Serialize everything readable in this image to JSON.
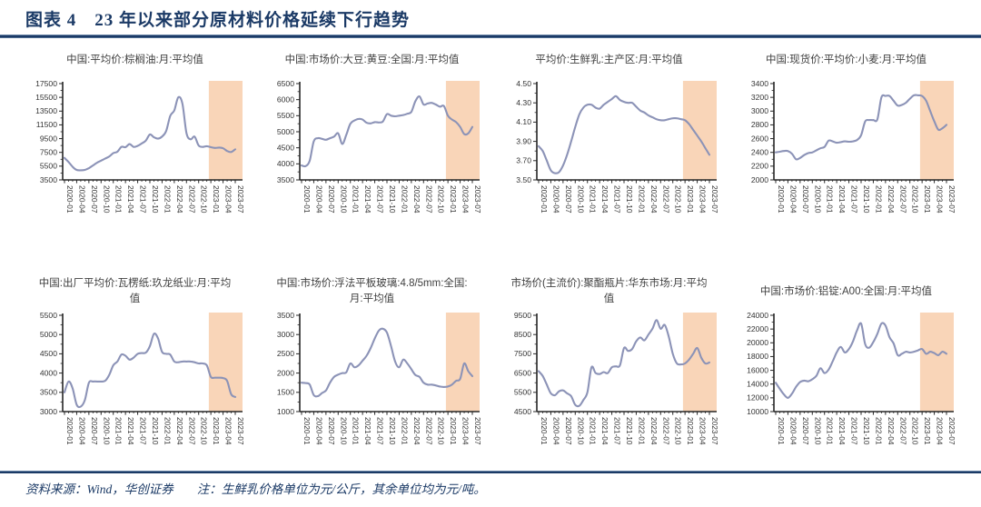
{
  "header": {
    "title": "图表 4　23 年以来部分原材料价格延续下行趋势"
  },
  "footer": {
    "source": "资料来源：Wind，华创证券",
    "note": "注：生鲜乳价格单位为元/公斤，其余单位均为元/吨。"
  },
  "colors": {
    "accent": "#1B3A66",
    "line": "#8C93B7",
    "band": "#F9D3B4",
    "axis": "#262626",
    "tick_text": "#333333",
    "chart_title": "#404040"
  },
  "chart_data": {
    "type": "line",
    "x_tick_labels": [
      "2020-01",
      "2020-04",
      "2020-07",
      "2020-10",
      "2021-01",
      "2021-04",
      "2021-07",
      "2021-10",
      "2022-01",
      "2022-04",
      "2022-07",
      "2022-10",
      "2023-01",
      "2023-04",
      "2023-07"
    ],
    "points_per_chart": 43,
    "x_range": [
      "2020-01",
      "2023-07"
    ],
    "band": {
      "start_label": "2023-01",
      "start_index": 36,
      "color": "#F9D3B4"
    },
    "charts": [
      {
        "title": "中国:平均价:棕榈油:月:平均值",
        "ylim": [
          3500,
          17500
        ],
        "yticks": [
          "3500",
          "5500",
          "7500",
          "9500",
          "11500",
          "13500",
          "15500",
          "17500"
        ],
        "values": [
          6700,
          6100,
          5400,
          4950,
          4900,
          4950,
          5200,
          5600,
          6000,
          6300,
          6600,
          6900,
          7400,
          7600,
          8300,
          8250,
          8700,
          8300,
          8450,
          8800,
          9200,
          10100,
          9700,
          9500,
          9800,
          10600,
          12800,
          13600,
          15500,
          14600,
          10300,
          9400,
          9800,
          8500,
          8300,
          8400,
          8250,
          8150,
          8200,
          8100,
          7700,
          7550,
          7950
        ]
      },
      {
        "title": "中国:市场价:大豆:黄豆:全国:月:平均值",
        "ylim": [
          3500,
          6500
        ],
        "yticks": [
          "3500",
          "4000",
          "4500",
          "5000",
          "5500",
          "6000",
          "6500"
        ],
        "values": [
          3950,
          3930,
          4100,
          4700,
          4800,
          4780,
          4750,
          4800,
          4850,
          4950,
          4620,
          4900,
          5250,
          5350,
          5400,
          5380,
          5280,
          5260,
          5300,
          5290,
          5320,
          5550,
          5500,
          5480,
          5500,
          5520,
          5560,
          5620,
          5950,
          6100,
          5850,
          5880,
          5900,
          5850,
          5780,
          5800,
          5500,
          5380,
          5300,
          5150,
          4930,
          4950,
          5150
        ]
      },
      {
        "title": "平均价:生鲜乳:主产区:月:平均值",
        "ylim": [
          3.5,
          4.5
        ],
        "yticks": [
          "3.50",
          "3.70",
          "3.90",
          "4.10",
          "4.30",
          "4.50"
        ],
        "values": [
          3.85,
          3.8,
          3.7,
          3.6,
          3.57,
          3.58,
          3.65,
          3.76,
          3.9,
          4.05,
          4.18,
          4.25,
          4.28,
          4.28,
          4.25,
          4.24,
          4.28,
          4.31,
          4.34,
          4.37,
          4.33,
          4.31,
          4.3,
          4.3,
          4.26,
          4.22,
          4.2,
          4.17,
          4.15,
          4.13,
          4.12,
          4.12,
          4.13,
          4.14,
          4.14,
          4.13,
          4.12,
          4.08,
          4.02,
          3.96,
          3.9,
          3.83,
          3.76
        ]
      },
      {
        "title": "中国:现货价:平均价:小麦:月:平均值",
        "ylim": [
          2000,
          3400
        ],
        "yticks": [
          "2000",
          "2200",
          "2400",
          "2600",
          "2800",
          "3000",
          "3200",
          "3400"
        ],
        "values": [
          2400,
          2410,
          2420,
          2420,
          2380,
          2300,
          2320,
          2360,
          2390,
          2400,
          2430,
          2460,
          2480,
          2570,
          2560,
          2540,
          2550,
          2560,
          2555,
          2560,
          2580,
          2650,
          2850,
          2870,
          2870,
          2880,
          3200,
          3220,
          3220,
          3150,
          3080,
          3090,
          3120,
          3180,
          3230,
          3230,
          3220,
          3150,
          3000,
          2850,
          2730,
          2750,
          2800
        ]
      },
      {
        "title": "中国:出厂平均价:瓦楞纸:玖龙纸业:月:平均值",
        "ylim": [
          3000,
          5500
        ],
        "yticks": [
          "3000",
          "3500",
          "4000",
          "4500",
          "5000",
          "5500"
        ],
        "values": [
          3500,
          3780,
          3600,
          3180,
          3130,
          3300,
          3750,
          3780,
          3780,
          3780,
          3800,
          3950,
          4200,
          4300,
          4480,
          4450,
          4350,
          4400,
          4500,
          4520,
          4530,
          4700,
          5020,
          4900,
          4550,
          4500,
          4480,
          4300,
          4280,
          4300,
          4300,
          4300,
          4280,
          4250,
          4250,
          4200,
          3900,
          3880,
          3880,
          3870,
          3800,
          3450,
          3380
        ]
      },
      {
        "title": "中国:市场价:浮法平板玻璃:4.8/5mm:全国:月:平均值",
        "ylim": [
          1000,
          3500
        ],
        "yticks": [
          "1000",
          "1500",
          "2000",
          "2500",
          "3000",
          "3500"
        ],
        "values": [
          1750,
          1740,
          1700,
          1430,
          1400,
          1480,
          1550,
          1750,
          1900,
          1960,
          2000,
          2020,
          2250,
          2150,
          2200,
          2320,
          2450,
          2650,
          2900,
          3100,
          3150,
          3050,
          2700,
          2300,
          2150,
          2350,
          2250,
          2100,
          1950,
          1900,
          1750,
          1700,
          1700,
          1680,
          1650,
          1640,
          1650,
          1700,
          1800,
          1850,
          2250,
          2050,
          1920
        ]
      },
      {
        "title": "市场价(主流价):聚酯瓶片:华东市场:月:平均值",
        "ylim": [
          4500,
          9500
        ],
        "yticks": [
          "4500",
          "5500",
          "6500",
          "7500",
          "8500",
          "9500"
        ],
        "values": [
          6600,
          6350,
          5900,
          5450,
          5350,
          5550,
          5600,
          5450,
          5300,
          4850,
          4800,
          5100,
          5500,
          6800,
          6500,
          6450,
          6550,
          6500,
          6800,
          6850,
          6900,
          7800,
          7650,
          7750,
          8150,
          8350,
          8200,
          8500,
          8800,
          9250,
          8800,
          9000,
          8400,
          7500,
          7000,
          6950,
          7000,
          7200,
          7500,
          7800,
          7300,
          7000,
          7050
        ]
      },
      {
        "title": "中国:市场价:铝锭:A00:全国:月:平均值",
        "ylim": [
          10000,
          24000
        ],
        "yticks": [
          "10000",
          "12000",
          "14000",
          "16000",
          "18000",
          "20000",
          "22000",
          "24000"
        ],
        "values": [
          14200,
          13300,
          12500,
          12000,
          12600,
          13600,
          14300,
          14500,
          14400,
          14700,
          15200,
          16300,
          15600,
          16100,
          17300,
          18600,
          19400,
          18600,
          19100,
          20200,
          21800,
          22800,
          19800,
          19300,
          20100,
          21300,
          22800,
          22500,
          20800,
          19900,
          18200,
          18400,
          18700,
          18600,
          18700,
          18900,
          19100,
          18400,
          18700,
          18500,
          18200,
          18700,
          18400
        ]
      }
    ]
  }
}
